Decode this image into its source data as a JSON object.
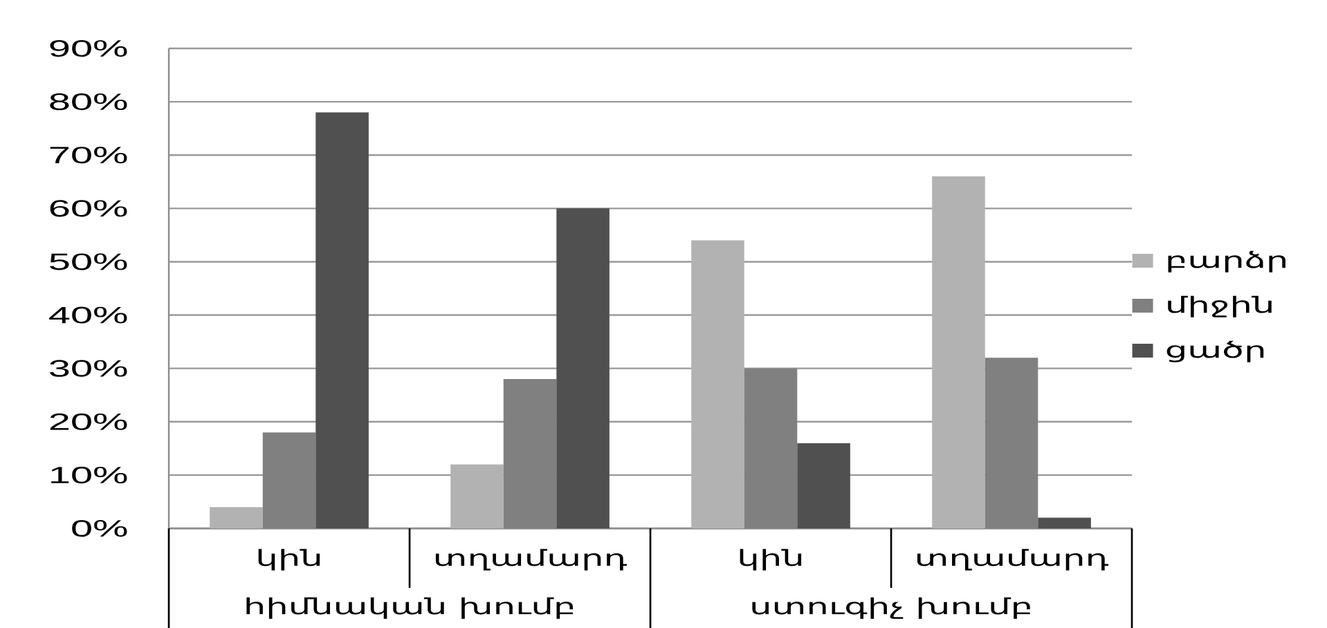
{
  "chart_data": {
    "type": "bar",
    "categories": [
      "կին",
      "տղամարդ",
      "կին",
      "տղամարդ"
    ],
    "series": [
      {
        "name": "բարձր",
        "color": "#b2b2b2",
        "values": [
          4,
          12,
          54,
          66
        ]
      },
      {
        "name": "միջին",
        "color": "#808080",
        "values": [
          18,
          28,
          30,
          32
        ]
      },
      {
        "name": "ցածր",
        "color": "#505050",
        "values": [
          78,
          60,
          16,
          2
        ]
      }
    ],
    "ylim": [
      0,
      90
    ],
    "yticks": [
      {
        "value": 0,
        "label": "0%"
      },
      {
        "value": 10,
        "label": "10%"
      },
      {
        "value": 20,
        "label": "20%"
      },
      {
        "value": 30,
        "label": "30%"
      },
      {
        "value": 40,
        "label": "40%"
      },
      {
        "value": 50,
        "label": "50%"
      },
      {
        "value": 60,
        "label": "60%"
      },
      {
        "value": 70,
        "label": "70%"
      },
      {
        "value": 80,
        "label": "80%"
      },
      {
        "value": 90,
        "label": "90%"
      }
    ],
    "grid": "y",
    "legend": "right",
    "annotations": [
      "հիմնական խումբ",
      "ստուգիչ խումբ"
    ]
  }
}
